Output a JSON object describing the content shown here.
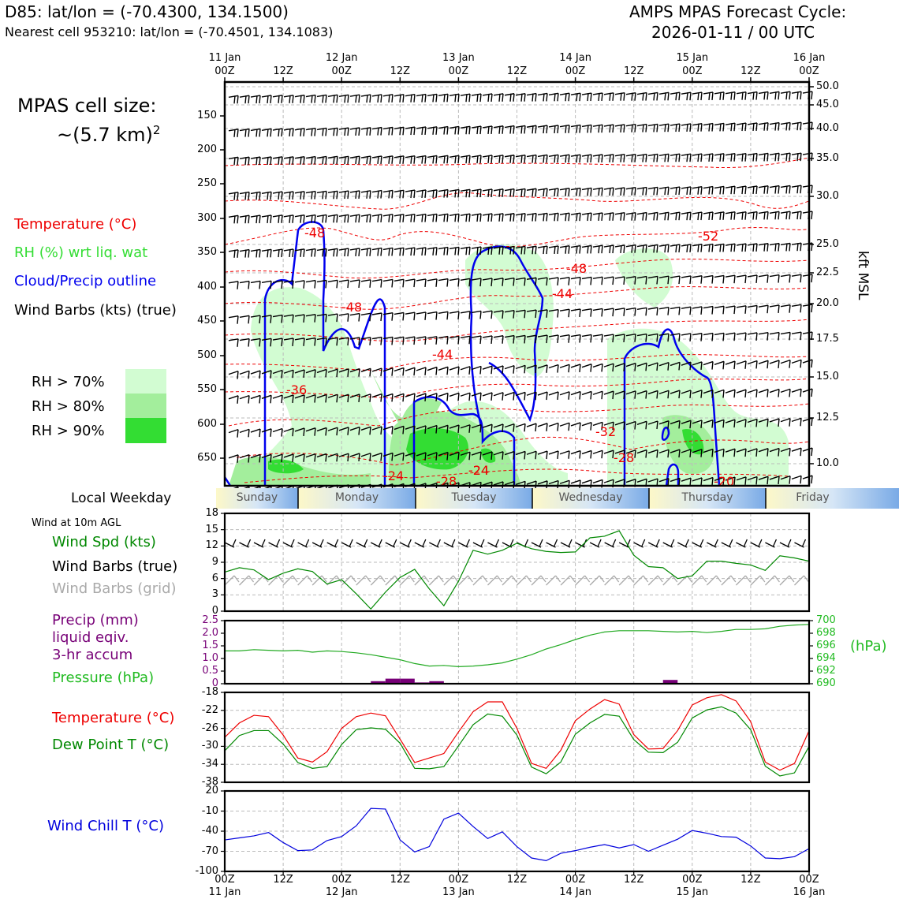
{
  "header": {
    "station_line": "D85: lat/lon = (-70.4300, 134.1500)",
    "cell_line": "Nearest cell 953210: lat/lon = (-70.4501, 134.1083)",
    "cycle_line1": "AMPS MPAS Forecast Cycle:",
    "cycle_line2": "2026-01-11 / 00 UTC"
  },
  "time_axis": {
    "top_labels": [
      "11 Jan\n00Z",
      "12Z",
      "12 Jan\n00Z",
      "12Z",
      "13 Jan\n00Z",
      "12Z",
      "14 Jan\n00Z",
      "12Z",
      "15 Jan\n00Z",
      "12Z",
      "16 Jan\n00Z"
    ],
    "bottom_times": [
      "00Z",
      "12Z",
      "00Z",
      "12Z",
      "00Z",
      "12Z",
      "00Z",
      "12Z",
      "00Z",
      "12Z",
      "00Z"
    ],
    "bottom_dates": [
      "11 Jan",
      "",
      "12 Jan",
      "",
      "13 Jan",
      "",
      "14 Jan",
      "",
      "15 Jan",
      "",
      "16 Jan"
    ]
  },
  "upper_panel": {
    "cell_size_label": "MPAS cell size:",
    "cell_size_value": "~(5.7 km)",
    "cell_size_exp": "2",
    "legend": {
      "temperature": "Temperature (°C)",
      "rh": "RH (%) wrt liq. wat",
      "cloud": "Cloud/Precip outline",
      "wind": "Wind Barbs (kts) (true)"
    },
    "rh_legend": [
      "RH > 70%",
      "RH > 80%",
      "RH > 90%"
    ],
    "rh_colors": [
      "#d2fcd2",
      "#a3ee9c",
      "#33dd33"
    ],
    "pressure_ticks": [
      "150",
      "200",
      "250",
      "300",
      "350",
      "400",
      "450",
      "500",
      "550",
      "600",
      "650"
    ],
    "kft_ticks": [
      "50.0",
      "45.0",
      "40.0",
      "35.0",
      "30.0",
      "25.0",
      "22.5",
      "20.0",
      "17.5",
      "15.0",
      "12.5",
      "10.0"
    ],
    "kft_label": "kft MSL",
    "temp_contour_labels": [
      "-48",
      "-48",
      "-44",
      "-48",
      "-52",
      "-44",
      "-36",
      "-32",
      "-28",
      "-24",
      "-24",
      "-28",
      "-24",
      "-20"
    ]
  },
  "weekday_bar": {
    "label": "Local Weekday",
    "days": [
      "Sunday",
      "Monday",
      "Tuesday",
      "Wednesday",
      "Thursday",
      "Friday"
    ]
  },
  "wind_panel": {
    "title": "Wind at 10m AGL",
    "legend_speed": "Wind Spd (kts)",
    "legend_true": "Wind Barbs (true)",
    "legend_grid": "Wind Barbs (grid)",
    "y_ticks": [
      "18",
      "15",
      "12",
      "9",
      "6",
      "3",
      "0"
    ]
  },
  "precip_panel": {
    "legend_precip1": "Precip (mm)",
    "legend_precip2": "liquid eqiv.",
    "legend_precip3": "3-hr accum",
    "legend_pressure": "Pressure (hPa)",
    "left_ticks": [
      "2.5",
      "2.0",
      "1.5",
      "1.0",
      "0.5",
      "0"
    ],
    "right_ticks": [
      "700",
      "698",
      "696",
      "694",
      "692",
      "690"
    ],
    "right_unit": "(hPa)"
  },
  "temp_panel": {
    "legend_temp": "Temperature (°C)",
    "legend_dew": "Dew Point T (°C)",
    "y_ticks": [
      "-18",
      "-22",
      "-26",
      "-30",
      "-34",
      "-38"
    ]
  },
  "chill_panel": {
    "legend": "Wind Chill T (°C)",
    "y_ticks": [
      "20",
      "-10",
      "-40",
      "-70",
      "-100"
    ]
  },
  "colors": {
    "temperature": "#ee0000",
    "rh": "#33dd33",
    "cloud": "#0000ee",
    "dewpoint": "#008800",
    "precip": "#770077",
    "pressure": "#22aa22",
    "windchill": "#0000dd",
    "grid_barb": "#aaaaaa"
  },
  "chart_data": [
    {
      "type": "line",
      "title": "Wind at 10m AGL",
      "ylabel": "Wind Spd (kts)",
      "ylim": [
        0,
        18
      ],
      "x_hours": [
        0,
        3,
        6,
        9,
        12,
        15,
        18,
        21,
        24,
        27,
        30,
        33,
        36,
        39,
        42,
        45,
        48,
        51,
        54,
        57,
        60,
        63,
        66,
        69,
        72,
        75,
        78,
        81,
        84,
        87,
        90,
        93,
        96,
        99,
        102,
        105,
        108,
        111,
        114,
        117,
        120
      ],
      "series": [
        {
          "name": "Wind Spd (kts)",
          "values": [
            7.2,
            8,
            7.6,
            5.8,
            7,
            7.8,
            7.3,
            5,
            5.8,
            3.2,
            0.4,
            3.5,
            6.2,
            7.7,
            4.1,
            1,
            5.5,
            11.2,
            10.5,
            11.2,
            12.5,
            11.5,
            11,
            10.8,
            10.9,
            13.5,
            13.8,
            14.8,
            10.3,
            8.2,
            8,
            6,
            6.5,
            9.2,
            9.2,
            8.8,
            8.5,
            7.5,
            10.2,
            9.8,
            9.2
          ]
        }
      ]
    },
    {
      "type": "line",
      "title": "Pressure (hPa)",
      "ylabel": "Pressure (hPa)",
      "ylim": [
        690,
        700
      ],
      "x_hours": [
        0,
        3,
        6,
        9,
        12,
        15,
        18,
        21,
        24,
        27,
        30,
        33,
        36,
        39,
        42,
        45,
        48,
        51,
        54,
        57,
        60,
        63,
        66,
        69,
        72,
        75,
        78,
        81,
        84,
        87,
        90,
        93,
        96,
        99,
        102,
        105,
        108,
        111,
        114,
        117,
        120
      ],
      "series": [
        {
          "name": "Pressure (hPa)",
          "values": [
            695.2,
            695.2,
            695.4,
            695.3,
            695.2,
            695.3,
            695,
            695.2,
            695.1,
            694.9,
            694.6,
            694.2,
            693.8,
            693.2,
            692.8,
            692.9,
            692.7,
            692.8,
            693,
            693.3,
            693.9,
            694.6,
            695.5,
            696.2,
            697,
            697.7,
            698.2,
            698.4,
            698.4,
            698.4,
            698.3,
            698.2,
            698.3,
            698.1,
            698.3,
            698.6,
            698.6,
            698.7,
            699.1,
            699.3,
            699.4
          ]
        }
      ]
    },
    {
      "type": "bar",
      "title": "Precip (mm) liquid eqiv. 3-hr accum",
      "ylim": [
        0,
        2.5
      ],
      "x_hours": [
        30,
        33,
        36,
        39,
        42,
        45,
        90
      ],
      "values": [
        0.1,
        0.2,
        0.2,
        0.05,
        0.1,
        0.0,
        0.15
      ]
    },
    {
      "type": "line",
      "title": "Temperature and Dew Point",
      "ylim": [
        -38,
        -18
      ],
      "x_hours": [
        0,
        3,
        6,
        9,
        12,
        15,
        18,
        21,
        24,
        27,
        30,
        33,
        36,
        39,
        42,
        45,
        48,
        51,
        54,
        57,
        60,
        63,
        66,
        69,
        72,
        75,
        78,
        81,
        84,
        87,
        90,
        93,
        96,
        99,
        102,
        105,
        108,
        111,
        114,
        117,
        120
      ],
      "series": [
        {
          "name": "Temperature (°C)",
          "values": [
            -28,
            -24.8,
            -23.1,
            -23.4,
            -27.5,
            -32.6,
            -33.5,
            -31.2,
            -26,
            -23.4,
            -22.6,
            -23.2,
            -28.4,
            -33.6,
            -32.6,
            -31.6,
            -26.8,
            -22.3,
            -20.1,
            -20.1,
            -26,
            -33.8,
            -34.9,
            -30.9,
            -24.3,
            -21.7,
            -19.6,
            -20.6,
            -27.4,
            -30.6,
            -30.5,
            -26.5,
            -20.8,
            -19.2,
            -18.5,
            -19.9,
            -24.5,
            -33.5,
            -35.3,
            -33.8,
            -26.5
          ]
        },
        {
          "name": "Dew Point T (°C)",
          "values": [
            -31,
            -27.6,
            -26.5,
            -26.5,
            -29.5,
            -33.6,
            -34.9,
            -34.5,
            -29.6,
            -26.3,
            -25.9,
            -26.2,
            -29.3,
            -34.9,
            -35,
            -34.5,
            -29.9,
            -25.2,
            -22.8,
            -23.3,
            -27.5,
            -34.6,
            -36.1,
            -33.5,
            -27.3,
            -24.8,
            -22.9,
            -23.3,
            -28.5,
            -31.3,
            -31.4,
            -29.1,
            -23.7,
            -21.9,
            -21.2,
            -22.6,
            -26.3,
            -34.4,
            -36.6,
            -35.9,
            -30
          ]
        }
      ]
    },
    {
      "type": "line",
      "title": "Wind Chill T (°C)",
      "ylim": [
        -100,
        20
      ],
      "x_hours": [
        0,
        3,
        6,
        9,
        12,
        15,
        18,
        21,
        24,
        27,
        30,
        33,
        36,
        39,
        42,
        45,
        48,
        51,
        54,
        57,
        60,
        63,
        66,
        69,
        72,
        75,
        78,
        81,
        84,
        87,
        90,
        93,
        96,
        99,
        102,
        105,
        108,
        111,
        114,
        117,
        120
      ],
      "series": [
        {
          "name": "Wind Chill T (°C)",
          "values": [
            -53,
            -50,
            -47,
            -42,
            -57,
            -69,
            -68,
            -54,
            -48,
            -32,
            -6,
            -7,
            -53,
            -71,
            -63,
            -22,
            -13,
            -33,
            -51,
            -41,
            -63,
            -80,
            -84,
            -73,
            -69,
            -64,
            -60,
            -65,
            -60,
            -70,
            -61,
            -52,
            -39,
            -43,
            -48,
            -49,
            -62,
            -80,
            -81,
            -78,
            -66
          ]
        }
      ]
    }
  ]
}
